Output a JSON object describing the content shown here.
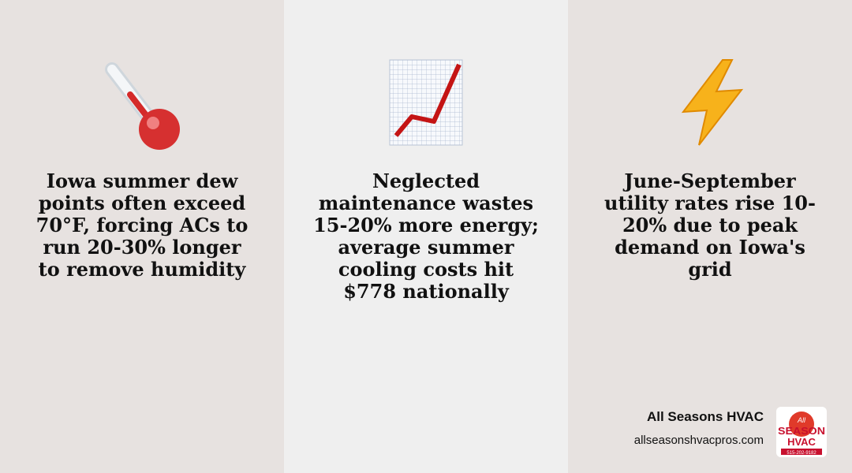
{
  "panels": [
    {
      "lines": [
        "Iowa summer dew",
        "points often exceed",
        "70°F, forcing ACs to",
        "run 20-30% longer",
        "to remove humidity"
      ]
    },
    {
      "lines": [
        "Neglected",
        "maintenance wastes",
        "15-20% more energy;",
        "average summer",
        "cooling costs hit",
        "$778 nationally"
      ]
    },
    {
      "lines": [
        "June-September",
        "utility rates rise 10-",
        "20% due to peak",
        "demand on Iowa's",
        "grid"
      ]
    }
  ],
  "footer": {
    "brand": "All Seasons HVAC",
    "url": "allseasonshvacpros.com"
  },
  "logo": {
    "top": "All",
    "middle": "SEASON",
    "bottom": "HVAC",
    "phone": "515-202-9182"
  }
}
